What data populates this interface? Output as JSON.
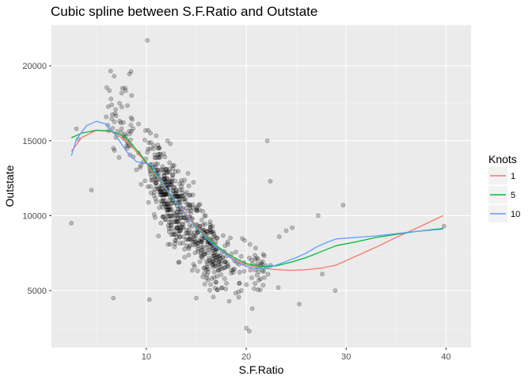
{
  "chart_data": {
    "type": "scatter",
    "title": "Cubic spline between S.F.Ratio and Outstate",
    "xlabel": "S.F.Ratio",
    "ylabel": "Outstate",
    "xlim": [
      0.5,
      42.5
    ],
    "ylim": [
      1200,
      22700
    ],
    "x_ticks": [
      10,
      20,
      30,
      40
    ],
    "x_ticks_minor": [
      5,
      15,
      25,
      35
    ],
    "y_ticks": [
      5000,
      10000,
      15000,
      20000
    ],
    "y_ticks_minor": [
      2500,
      7500,
      12500,
      17500,
      22500
    ],
    "grid": true,
    "panel_color": "#ebebeb",
    "point_color": "#000000",
    "point_alpha": 0.22,
    "scatter_seed": 7,
    "scatter_clusters": [
      {
        "n": 360,
        "x_mean": 12.5,
        "x_sd": 2.2,
        "intercept": 23500,
        "slope": -980,
        "noise": 2300,
        "x_min": 9.0,
        "x_max": 17.0
      },
      {
        "n": 230,
        "x_mean": 16.5,
        "x_sd": 2.0,
        "intercept": 19500,
        "slope": -720,
        "noise": 2000,
        "x_min": 13.0,
        "x_max": 21.5
      },
      {
        "n": 60,
        "x_mean": 7.5,
        "x_sd": 1.6,
        "intercept": 21000,
        "slope": -600,
        "noise": 2600,
        "x_min": 4.0,
        "x_max": 10.0
      },
      {
        "n": 40,
        "x_mean": 21.0,
        "x_sd": 1.5,
        "intercept": 16500,
        "slope": -480,
        "noise": 1600,
        "x_min": 18.0,
        "x_max": 24.5
      }
    ],
    "scatter_points": [
      {
        "x": 2.5,
        "y": 9500
      },
      {
        "x": 3.0,
        "y": 15800
      },
      {
        "x": 3.2,
        "y": 15100
      },
      {
        "x": 4.5,
        "y": 11700
      },
      {
        "x": 6.7,
        "y": 4500
      },
      {
        "x": 10.1,
        "y": 21700
      },
      {
        "x": 10.3,
        "y": 4400
      },
      {
        "x": 15.0,
        "y": 4500
      },
      {
        "x": 20.0,
        "y": 2500
      },
      {
        "x": 20.3,
        "y": 2300
      },
      {
        "x": 20.6,
        "y": 3800
      },
      {
        "x": 22.1,
        "y": 15000
      },
      {
        "x": 22.4,
        "y": 12300
      },
      {
        "x": 23.2,
        "y": 5200
      },
      {
        "x": 23.3,
        "y": 8600
      },
      {
        "x": 24.0,
        "y": 9000
      },
      {
        "x": 24.6,
        "y": 9200
      },
      {
        "x": 25.3,
        "y": 4100
      },
      {
        "x": 27.2,
        "y": 10000
      },
      {
        "x": 27.6,
        "y": 6100
      },
      {
        "x": 28.9,
        "y": 5000
      },
      {
        "x": 29.7,
        "y": 10700
      },
      {
        "x": 39.8,
        "y": 9300
      }
    ],
    "legend": {
      "title": "Knots",
      "position": "right"
    },
    "series": [
      {
        "name": "1",
        "color": "#f8766d",
        "x": [
          2.5,
          3.5,
          5,
          6.5,
          8,
          9.5,
          11,
          12.5,
          14,
          15.5,
          17,
          18.5,
          20,
          21.5,
          23,
          24.5,
          26,
          27.5,
          29,
          31,
          33,
          35,
          37,
          39.7
        ],
        "y": [
          14300,
          15200,
          15700,
          15600,
          15000,
          13900,
          12600,
          11300,
          10100,
          9000,
          8000,
          7200,
          6700,
          6500,
          6400,
          6350,
          6400,
          6500,
          6700,
          7300,
          7900,
          8550,
          9150,
          10000
        ]
      },
      {
        "name": "5",
        "color": "#00ba38",
        "x": [
          2.5,
          3.5,
          5,
          6.5,
          8,
          9.5,
          11,
          12.5,
          14,
          15.5,
          17,
          18.5,
          20,
          21.5,
          23,
          24.5,
          26,
          27.5,
          29,
          31,
          33,
          35,
          37,
          39.7
        ],
        "y": [
          15200,
          15500,
          15700,
          15650,
          15200,
          14000,
          12700,
          11300,
          10000,
          8900,
          8000,
          7300,
          6800,
          6600,
          6650,
          6900,
          7200,
          7600,
          8000,
          8250,
          8550,
          8750,
          8950,
          9150
        ]
      },
      {
        "name": "10",
        "color": "#619cff",
        "x": [
          2.5,
          3,
          4,
          5,
          6,
          7,
          8,
          9,
          10,
          10.5,
          11,
          12,
          13,
          14,
          15,
          16,
          17,
          18,
          19,
          20,
          21,
          22,
          23,
          24,
          25,
          26,
          27,
          28,
          29,
          31,
          33,
          35,
          37,
          39.7
        ],
        "y": [
          14000,
          15100,
          16000,
          16300,
          16100,
          15300,
          14300,
          13600,
          13500,
          13400,
          12800,
          11800,
          10900,
          10000,
          9200,
          8500,
          7900,
          7400,
          6900,
          6600,
          6450,
          6500,
          6700,
          6950,
          7200,
          7500,
          7900,
          8200,
          8450,
          8550,
          8650,
          8800,
          8950,
          9100
        ]
      }
    ]
  }
}
